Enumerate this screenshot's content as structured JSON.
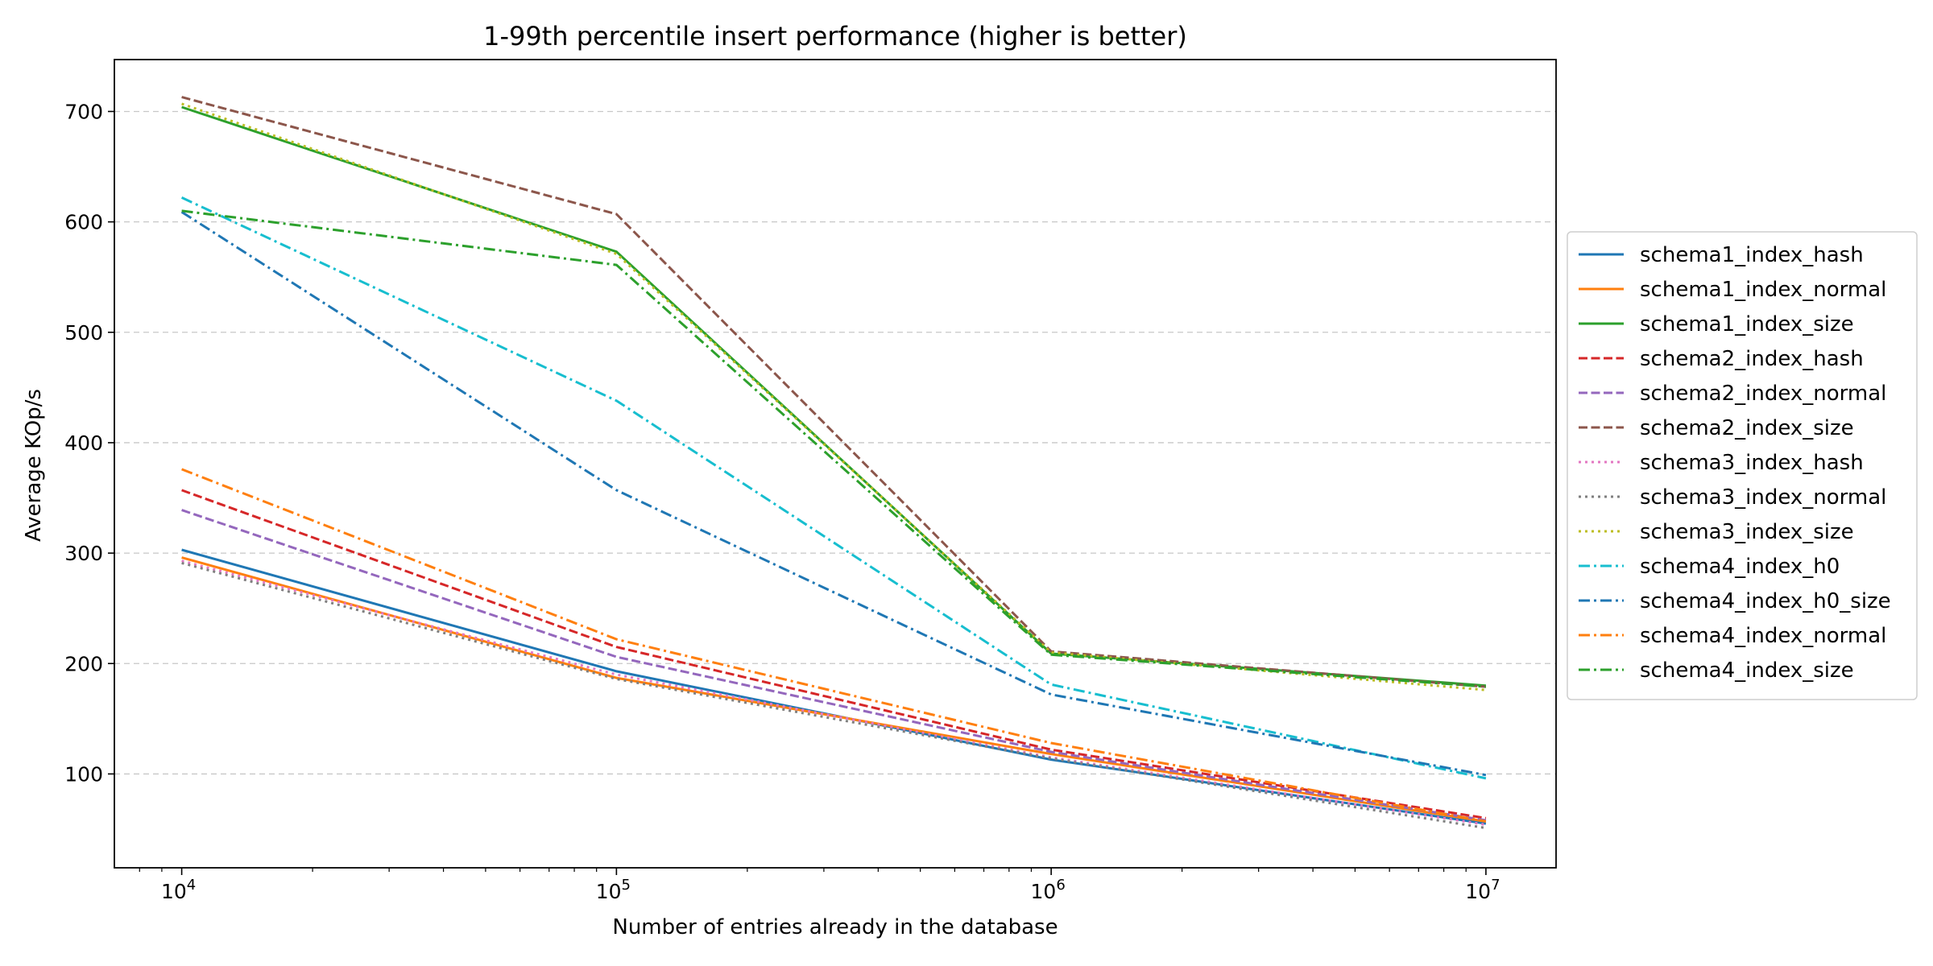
{
  "chart_data": {
    "type": "line",
    "title": "1-99th percentile insert performance (higher is better)",
    "xlabel": "Number of entries already in the database",
    "ylabel": "Average KOp/s",
    "x_scale": "log",
    "x": [
      10000,
      100000,
      1000000,
      10000000
    ],
    "x_ticks": [
      {
        "value": 10000,
        "base": "10",
        "exp": "4"
      },
      {
        "value": 100000,
        "base": "10",
        "exp": "5"
      },
      {
        "value": 1000000,
        "base": "10",
        "exp": "6"
      },
      {
        "value": 10000000,
        "base": "10",
        "exp": "7"
      }
    ],
    "xlim": [
      7000,
      14500000
    ],
    "ylim": [
      15,
      747
    ],
    "y_ticks": [
      "100",
      "200",
      "300",
      "400",
      "500",
      "600",
      "700"
    ],
    "grid": "horizontal-dashed",
    "legend_position": "center-right-outside",
    "series": [
      {
        "name": "schema1_index_hash",
        "color": "#1f77b4",
        "dash": "solid",
        "values": [
          303,
          193,
          113,
          55
        ]
      },
      {
        "name": "schema1_index_normal",
        "color": "#ff7f0e",
        "dash": "solid",
        "values": [
          296,
          187,
          118,
          57
        ]
      },
      {
        "name": "schema1_index_size",
        "color": "#2ca02c",
        "dash": "solid",
        "values": [
          704,
          573,
          209,
          180
        ]
      },
      {
        "name": "schema2_index_hash",
        "color": "#d62728",
        "dash": "dashed",
        "values": [
          357,
          215,
          122,
          60
        ]
      },
      {
        "name": "schema2_index_normal",
        "color": "#9467bd",
        "dash": "dashed",
        "values": [
          339,
          206,
          120,
          58
        ]
      },
      {
        "name": "schema2_index_size",
        "color": "#8c564b",
        "dash": "dashed",
        "values": [
          713,
          607,
          211,
          179
        ]
      },
      {
        "name": "schema3_index_hash",
        "color": "#e377c2",
        "dash": "dotted",
        "values": [
          293,
          190,
          115,
          54
        ]
      },
      {
        "name": "schema3_index_normal",
        "color": "#7f7f7f",
        "dash": "dotted",
        "values": [
          291,
          186,
          114,
          51
        ]
      },
      {
        "name": "schema3_index_size",
        "color": "#bcbd22",
        "dash": "dotted",
        "values": [
          707,
          571,
          210,
          176
        ]
      },
      {
        "name": "schema4_index_h0",
        "color": "#17becf",
        "dash": "dashdot",
        "values": [
          622,
          438,
          181,
          96
        ]
      },
      {
        "name": "schema4_index_h0_size",
        "color": "#1f77b4",
        "dash": "dashdot",
        "values": [
          609,
          357,
          172,
          99
        ]
      },
      {
        "name": "schema4_index_normal",
        "color": "#ff7f0e",
        "dash": "dashdot",
        "values": [
          376,
          222,
          128,
          57
        ]
      },
      {
        "name": "schema4_index_size",
        "color": "#2ca02c",
        "dash": "dashdot",
        "values": [
          610,
          561,
          208,
          179
        ]
      }
    ]
  }
}
